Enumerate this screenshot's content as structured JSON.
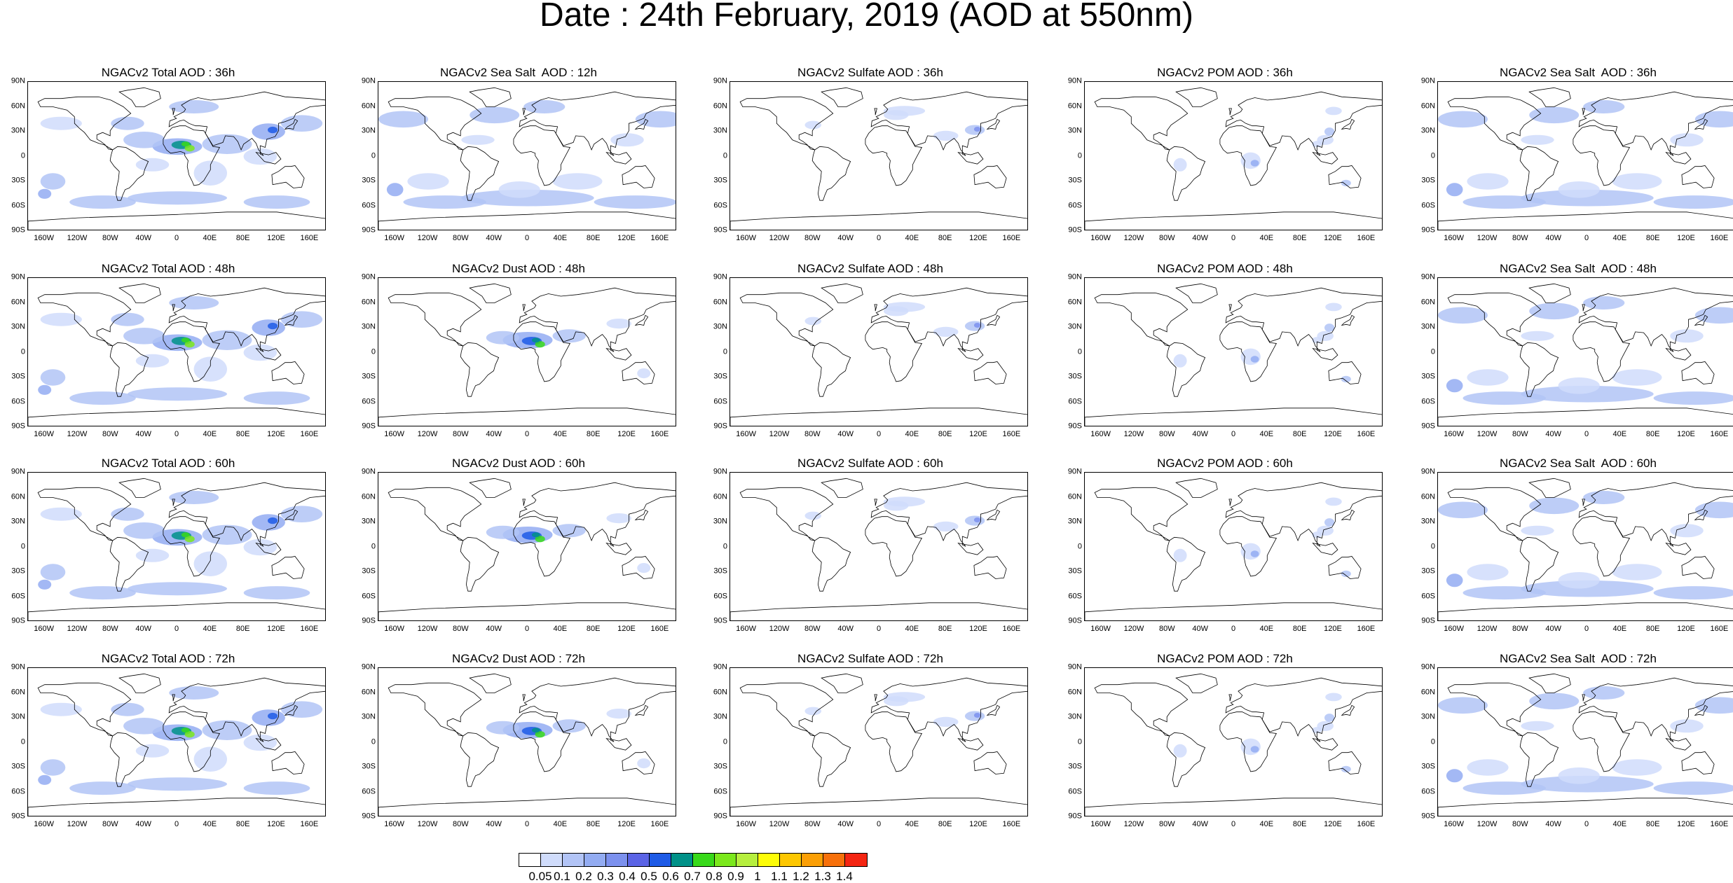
{
  "title": "Date : 24th February, 2019 (AOD at 550nm)",
  "lat_ticks": [
    "90N",
    "60N",
    "30N",
    "0",
    "30S",
    "60S",
    "90S"
  ],
  "lon_ticks": [
    "160W",
    "120W",
    "80W",
    "40W",
    "0",
    "40E",
    "80E",
    "120E",
    "160E"
  ],
  "lon_tick_values": [
    -160,
    -120,
    -80,
    -40,
    0,
    40,
    80,
    120,
    160
  ],
  "panel_titles": [
    [
      "NGACv2 Total AOD : 36h",
      "NGACv2 Sea Salt  AOD : 12h",
      "NGACv2 Sulfate AOD : 36h",
      "NGACv2 POM AOD : 36h",
      "NGACv2 Sea Salt  AOD : 36h"
    ],
    [
      "NGACv2 Total AOD : 48h",
      "NGACv2 Dust AOD : 48h",
      "NGACv2 Sulfate AOD : 48h",
      "NGACv2 POM AOD : 48h",
      "NGACv2 Sea Salt  AOD : 48h"
    ],
    [
      "NGACv2 Total AOD : 60h",
      "NGACv2 Dust AOD : 60h",
      "NGACv2 Sulfate AOD : 60h",
      "NGACv2 POM AOD : 60h",
      "NGACv2 Sea Salt  AOD : 60h"
    ],
    [
      "NGACv2 Total AOD : 72h",
      "NGACv2 Dust AOD : 72h",
      "NGACv2 Sulfate AOD : 72h",
      "NGACv2 POM AOD : 72h",
      "NGACv2 Sea Salt  AOD : 72h"
    ]
  ],
  "colorbar": {
    "labels": [
      "0.05",
      "0.1",
      "0.2",
      "0.3",
      "0.4",
      "0.5",
      "0.6",
      "0.7",
      "0.8",
      "0.9",
      "1",
      "1.1",
      "1.2",
      "1.3",
      "1.4"
    ],
    "colors": [
      "#ffffff",
      "#d0dcfb",
      "#b2c4f6",
      "#93acf2",
      "#7c91ee",
      "#5b64e6",
      "#1e5be6",
      "#009188",
      "#38d91a",
      "#7be81c",
      "#b6ef3e",
      "#fdfd08",
      "#fdc700",
      "#fb9f05",
      "#f7700a",
      "#f42512"
    ]
  }
}
